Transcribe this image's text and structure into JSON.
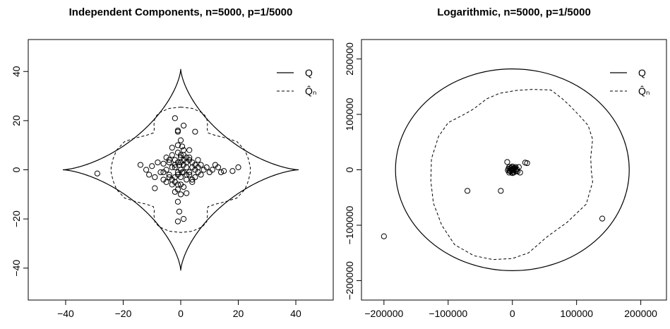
{
  "chart_data": [
    {
      "type": "scatter",
      "title": "Independent Components, n=5000, p=1/5000",
      "xlabel": "",
      "ylabel": "",
      "xlim": [
        -53,
        53
      ],
      "ylim": [
        -53,
        53
      ],
      "x_ticks": [
        -40,
        -20,
        0,
        20,
        40
      ],
      "y_ticks": [
        -40,
        -20,
        0,
        20,
        40
      ],
      "x_tick_labels": [
        "−40",
        "−20",
        "0",
        "20",
        "40"
      ],
      "y_tick_labels": [
        "−40",
        "−20",
        "0",
        "20",
        "40"
      ],
      "legend": {
        "position": "top-right",
        "entries": [
          {
            "label": "Q",
            "style": "solid"
          },
          {
            "label": "Q̂ₙ",
            "style": "dashed"
          }
        ]
      },
      "Q_curve": {
        "style": "solid",
        "shape": "astroid",
        "extent": 41
      },
      "Qn_curve": {
        "style": "dashed",
        "points": [
          [
            0,
            25.5
          ],
          [
            4,
            25
          ],
          [
            7.5,
            23.2
          ],
          [
            9,
            21.2
          ],
          [
            9.3,
            18.5
          ],
          [
            9.2,
            16.5
          ],
          [
            9.5,
            15
          ],
          [
            12,
            14
          ],
          [
            15.5,
            13
          ],
          [
            19.5,
            11.5
          ],
          [
            22.3,
            8
          ],
          [
            23.5,
            4.5
          ],
          [
            24.2,
            1
          ],
          [
            24.2,
            -1
          ],
          [
            23.5,
            -4.5
          ],
          [
            22.3,
            -8
          ],
          [
            19.5,
            -11.5
          ],
          [
            15.5,
            -13
          ],
          [
            12,
            -14
          ],
          [
            9.5,
            -15
          ],
          [
            9.2,
            -16.5
          ],
          [
            9.3,
            -18.5
          ],
          [
            9,
            -21.2
          ],
          [
            7.5,
            -23.2
          ],
          [
            4,
            -25
          ],
          [
            0,
            -25.5
          ],
          [
            -4,
            -25
          ],
          [
            -7.5,
            -23.2
          ],
          [
            -9,
            -21.2
          ],
          [
            -9.3,
            -18.5
          ],
          [
            -9.2,
            -16.5
          ],
          [
            -9.5,
            -15
          ],
          [
            -12,
            -14
          ],
          [
            -15.5,
            -13
          ],
          [
            -19.5,
            -11.5
          ],
          [
            -22.3,
            -8
          ],
          [
            -23.5,
            -4.5
          ],
          [
            -24.2,
            -1
          ],
          [
            -24.2,
            1
          ],
          [
            -23.5,
            4.5
          ],
          [
            -22.3,
            8
          ],
          [
            -19.5,
            11.5
          ],
          [
            -15.5,
            13
          ],
          [
            -12,
            14
          ],
          [
            -9.5,
            15
          ],
          [
            -9.2,
            16.5
          ],
          [
            -9.3,
            18.5
          ],
          [
            -9,
            21.2
          ],
          [
            -7.5,
            23.2
          ],
          [
            -4,
            25
          ]
        ]
      },
      "points": [
        [
          -29,
          -1.5
        ],
        [
          -9,
          -7.5
        ],
        [
          -14,
          2
        ],
        [
          -12,
          0
        ],
        [
          -11,
          -2
        ],
        [
          -10,
          1.5
        ],
        [
          -9,
          -3
        ],
        [
          -8,
          3
        ],
        [
          -7,
          -1
        ],
        [
          -6,
          2.5
        ],
        [
          -6,
          -4
        ],
        [
          -5,
          5
        ],
        [
          -5,
          -5
        ],
        [
          -4,
          3
        ],
        [
          -4,
          -2
        ],
        [
          -3,
          6
        ],
        [
          -3,
          -6
        ],
        [
          -2,
          4
        ],
        [
          -2,
          -3
        ],
        [
          -1,
          7
        ],
        [
          -1,
          -8
        ],
        [
          -0.5,
          2
        ],
        [
          0,
          0
        ],
        [
          0.5,
          -1
        ],
        [
          1,
          8
        ],
        [
          1,
          -7
        ],
        [
          2,
          3
        ],
        [
          2,
          -4
        ],
        [
          3,
          5
        ],
        [
          3,
          -2
        ],
        [
          4,
          1
        ],
        [
          4,
          -5
        ],
        [
          5,
          2
        ],
        [
          5,
          -3
        ],
        [
          6,
          4
        ],
        [
          6,
          -1
        ],
        [
          7,
          -2
        ],
        [
          7,
          2
        ],
        [
          8,
          0
        ],
        [
          9,
          1
        ],
        [
          10,
          -1
        ],
        [
          11,
          0
        ],
        [
          12,
          2
        ],
        [
          13,
          1
        ],
        [
          14,
          -1
        ],
        [
          15,
          -0.5
        ],
        [
          18,
          -0.5
        ],
        [
          20,
          1
        ],
        [
          -2,
          21
        ],
        [
          -1,
          16
        ],
        [
          -1,
          15.5
        ],
        [
          1,
          18
        ],
        [
          5,
          15.5
        ],
        [
          -1,
          -21
        ],
        [
          1,
          -20
        ],
        [
          -0.5,
          -17
        ],
        [
          -1,
          -13
        ],
        [
          0,
          -10
        ],
        [
          0,
          12
        ],
        [
          0.5,
          9.5
        ],
        [
          -3,
          9
        ],
        [
          2,
          -9.5
        ],
        [
          -1,
          10
        ],
        [
          3,
          8
        ],
        [
          -2,
          -9
        ],
        [
          0,
          5
        ],
        [
          1,
          4
        ],
        [
          -1,
          3
        ],
        [
          2,
          1
        ],
        [
          -2,
          1
        ],
        [
          1,
          -1
        ],
        [
          -1,
          -1
        ],
        [
          3,
          -1
        ],
        [
          -3,
          1
        ],
        [
          0,
          3
        ],
        [
          0,
          -3
        ],
        [
          2,
          -2
        ],
        [
          -2,
          2
        ],
        [
          1,
          2
        ],
        [
          -1,
          -2
        ],
        [
          4,
          3
        ],
        [
          -4,
          -3
        ],
        [
          3,
          4
        ],
        [
          -3,
          -4
        ],
        [
          5,
          0
        ],
        [
          -5,
          0
        ],
        [
          0,
          6
        ],
        [
          0,
          -6
        ],
        [
          6,
          1
        ],
        [
          -6,
          -1
        ],
        [
          1,
          6
        ],
        [
          -1,
          -6
        ],
        [
          2,
          5
        ],
        [
          -2,
          -5
        ],
        [
          4,
          -4
        ],
        [
          -4,
          4
        ]
      ]
    },
    {
      "type": "scatter",
      "title": "Logarithmic, n=5000, p=1/5000",
      "xlabel": "",
      "ylabel": "",
      "xlim": [
        -235000,
        240000
      ],
      "ylim": [
        -235000,
        235000
      ],
      "x_ticks": [
        -200000,
        -100000,
        0,
        100000,
        200000
      ],
      "y_ticks": [
        -200000,
        -100000,
        0,
        100000,
        200000
      ],
      "x_tick_labels": [
        "−200000",
        "−100000",
        "0",
        "100000",
        "200000"
      ],
      "y_tick_labels": [
        "−200000",
        "−100000",
        "0",
        "100000",
        "200000"
      ],
      "legend": {
        "position": "top-right",
        "entries": [
          {
            "label": "Q",
            "style": "solid"
          },
          {
            "label": "Q̂ₙ",
            "style": "dashed"
          }
        ]
      },
      "Q_curve": {
        "style": "solid",
        "shape": "ellipse",
        "rx": 182000,
        "ry": 182000
      },
      "Qn_curve": {
        "style": "dashed",
        "points": [
          [
            -40000,
            128000
          ],
          [
            -20000,
            138000
          ],
          [
            5000,
            143000
          ],
          [
            30000,
            145000
          ],
          [
            60000,
            144000
          ],
          [
            78000,
            128000
          ],
          [
            90000,
            115000
          ],
          [
            105000,
            97000
          ],
          [
            118000,
            80000
          ],
          [
            125000,
            55000
          ],
          [
            122000,
            22000
          ],
          [
            123000,
            -2000
          ],
          [
            125000,
            -22000
          ],
          [
            115000,
            -62000
          ],
          [
            85000,
            -95000
          ],
          [
            55000,
            -120000
          ],
          [
            25000,
            -150000
          ],
          [
            0,
            -160000
          ],
          [
            -30000,
            -162000
          ],
          [
            -60000,
            -155000
          ],
          [
            -90000,
            -135000
          ],
          [
            -110000,
            -100000
          ],
          [
            -123000,
            -60000
          ],
          [
            -127000,
            -20000
          ],
          [
            -126000,
            20000
          ],
          [
            -115000,
            60000
          ],
          [
            -100000,
            85000
          ],
          [
            -75000,
            100000
          ],
          [
            -60000,
            110000
          ]
        ]
      },
      "points": [
        [
          -200000,
          -120000
        ],
        [
          -70000,
          -38000
        ],
        [
          -18000,
          -38000
        ],
        [
          140000,
          -88000
        ],
        [
          -8000,
          14000
        ],
        [
          23000,
          12000
        ],
        [
          20000,
          13000
        ],
        [
          10000,
          5000
        ],
        [
          12000,
          -5000
        ],
        [
          -5000,
          5000
        ],
        [
          -3000,
          -3000
        ],
        [
          0,
          0
        ],
        [
          2000,
          2000
        ],
        [
          -2000,
          1000
        ],
        [
          3000,
          -1000
        ],
        [
          1000,
          -3000
        ],
        [
          -4000,
          -2000
        ],
        [
          4000,
          3000
        ],
        [
          5000,
          0
        ],
        [
          -6000,
          2000
        ],
        [
          6000,
          -2000
        ],
        [
          0,
          6000
        ],
        [
          0,
          -6000
        ],
        [
          -1000,
          4000
        ],
        [
          2000,
          -5000
        ],
        [
          7000,
          1000
        ],
        [
          -7000,
          -1000
        ],
        [
          1000,
          1000
        ],
        [
          -1000,
          -1000
        ],
        [
          3000,
          3000
        ],
        [
          -3000,
          3000
        ],
        [
          5000,
          5000
        ],
        [
          -5000,
          -5000
        ],
        [
          8000,
          -3000
        ]
      ]
    }
  ]
}
